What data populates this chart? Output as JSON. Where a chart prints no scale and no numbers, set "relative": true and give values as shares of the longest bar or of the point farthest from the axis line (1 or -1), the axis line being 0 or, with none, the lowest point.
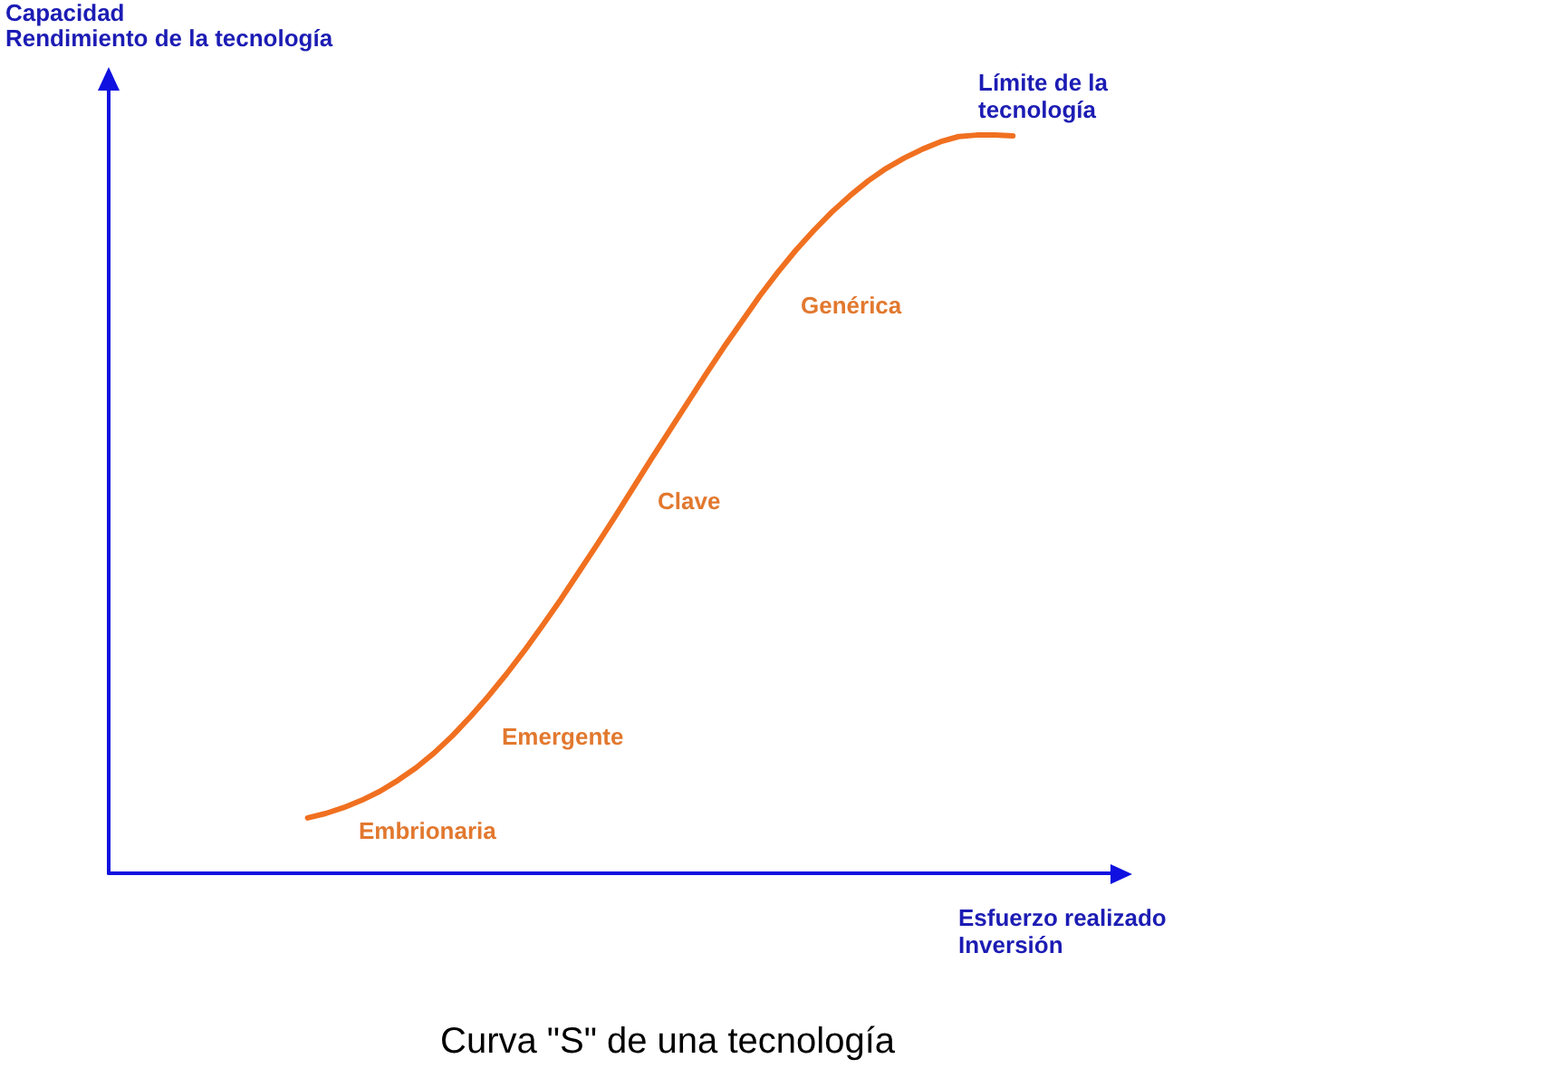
{
  "chart_data": {
    "type": "line",
    "title": "Curva \"S\" de una tecnología",
    "xlabel": "Esfuerzo realizado\nInversión",
    "ylabel": "Capacidad\nRendimiento de la tecnología",
    "annotations": [
      "Embrionaria",
      "Emergente",
      "Clave",
      "Genérica",
      "Límite de la\ntecnología"
    ],
    "relative": true,
    "categories": [
      null,
      null,
      null,
      null,
      null,
      null,
      null,
      null,
      null,
      null,
      null,
      null,
      null,
      null,
      null,
      null,
      null,
      null,
      null,
      null,
      null,
      null,
      null,
      null,
      null,
      null,
      null,
      null,
      null,
      null,
      null,
      null,
      null,
      null,
      null,
      null,
      null,
      null,
      null,
      null,
      null,
      null,
      null,
      null,
      null,
      null,
      null,
      null,
      null,
      null,
      null,
      null,
      null,
      null,
      null,
      null,
      null
    ],
    "values": [
      null,
      null,
      null,
      null,
      null,
      null,
      null,
      null,
      null,
      null,
      null,
      0.075,
      0.081,
      0.089,
      0.099,
      0.111,
      0.126,
      0.143,
      0.163,
      0.186,
      0.212,
      0.24,
      0.27,
      0.302,
      0.336,
      0.371,
      0.408,
      0.445,
      0.483,
      0.522,
      0.561,
      0.599,
      0.637,
      0.675,
      0.712,
      0.747,
      0.782,
      0.814,
      0.844,
      0.871,
      0.896,
      0.918,
      0.938,
      0.955,
      0.969,
      0.981,
      0.991,
      0.998,
      1,
      1,
      0.999,
      null,
      null,
      null,
      null,
      null,
      null
    ],
    "color": "#f07020"
  }
}
